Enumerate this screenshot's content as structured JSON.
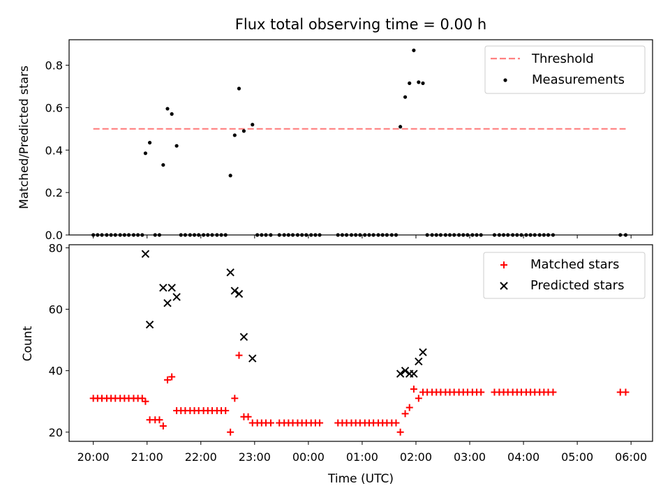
{
  "chart_data": {
    "title": "Flux total observing time = 0.00 h",
    "xlabel": "Time (UTC)",
    "x_tick_labels": [
      "20:00",
      "21:00",
      "22:00",
      "23:00",
      "00:00",
      "01:00",
      "02:00",
      "03:00",
      "04:00",
      "05:00",
      "06:00"
    ],
    "x_tick_hours": [
      0,
      1,
      2,
      3,
      4,
      5,
      6,
      7,
      8,
      9,
      10
    ],
    "x_range_hours": [
      -0.45,
      10.4
    ],
    "x_unit_note": "hours after 20:00 UTC",
    "colors": {
      "threshold": "#ff8080",
      "measurements": "#000000",
      "matched": "#ff0000",
      "predicted": "#000000"
    },
    "top": {
      "type": "scatter",
      "ylabel": "Matched/Predicted stars",
      "ylim": [
        0,
        0.92
      ],
      "yticks": [
        0.0,
        0.2,
        0.4,
        0.6,
        0.8
      ],
      "ytick_labels": [
        "0.0",
        "0.2",
        "0.4",
        "0.6",
        "0.8"
      ],
      "threshold": {
        "y": 0.5,
        "x": [
          0,
          9.9
        ]
      },
      "legend": {
        "position": "top-right",
        "threshold_label": "Threshold",
        "measurements_label": "Measurements"
      },
      "measurements": [
        [
          0,
          0
        ],
        [
          0.08,
          0
        ],
        [
          0.16,
          0
        ],
        [
          0.25,
          0
        ],
        [
          0.33,
          0
        ],
        [
          0.41,
          0
        ],
        [
          0.5,
          0
        ],
        [
          0.58,
          0
        ],
        [
          0.66,
          0
        ],
        [
          0.75,
          0
        ],
        [
          0.83,
          0
        ],
        [
          0.91,
          0
        ],
        [
          0.97,
          0.385
        ],
        [
          1.05,
          0.435
        ],
        [
          1.15,
          0
        ],
        [
          1.23,
          0
        ],
        [
          1.3,
          0.33
        ],
        [
          1.38,
          0.595
        ],
        [
          1.46,
          0.57
        ],
        [
          1.55,
          0.42
        ],
        [
          1.63,
          0
        ],
        [
          1.71,
          0
        ],
        [
          1.8,
          0
        ],
        [
          1.88,
          0
        ],
        [
          1.96,
          0
        ],
        [
          2.05,
          0
        ],
        [
          2.13,
          0
        ],
        [
          2.21,
          0
        ],
        [
          2.3,
          0
        ],
        [
          2.38,
          0
        ],
        [
          2.46,
          0
        ],
        [
          2.55,
          0.28
        ],
        [
          2.63,
          0.47
        ],
        [
          2.71,
          0.69
        ],
        [
          2.8,
          0.49
        ],
        [
          2.96,
          0.52
        ],
        [
          3.05,
          0
        ],
        [
          3.13,
          0
        ],
        [
          3.21,
          0
        ],
        [
          3.3,
          0
        ],
        [
          3.46,
          0
        ],
        [
          3.55,
          0
        ],
        [
          3.63,
          0
        ],
        [
          3.71,
          0
        ],
        [
          3.8,
          0
        ],
        [
          3.88,
          0
        ],
        [
          3.96,
          0
        ],
        [
          4.05,
          0
        ],
        [
          4.13,
          0
        ],
        [
          4.21,
          0
        ],
        [
          4.55,
          0
        ],
        [
          4.63,
          0
        ],
        [
          4.71,
          0
        ],
        [
          4.8,
          0
        ],
        [
          4.88,
          0
        ],
        [
          4.96,
          0
        ],
        [
          5.05,
          0
        ],
        [
          5.13,
          0
        ],
        [
          5.21,
          0
        ],
        [
          5.3,
          0
        ],
        [
          5.38,
          0
        ],
        [
          5.46,
          0
        ],
        [
          5.55,
          0
        ],
        [
          5.63,
          0
        ],
        [
          5.71,
          0.51
        ],
        [
          5.8,
          0.65
        ],
        [
          5.88,
          0.715
        ],
        [
          5.96,
          0.87
        ],
        [
          6.05,
          0.72
        ],
        [
          6.13,
          0.715
        ],
        [
          6.21,
          0
        ],
        [
          6.3,
          0
        ],
        [
          6.38,
          0
        ],
        [
          6.46,
          0
        ],
        [
          6.55,
          0
        ],
        [
          6.63,
          0
        ],
        [
          6.71,
          0
        ],
        [
          6.8,
          0
        ],
        [
          6.88,
          0
        ],
        [
          6.96,
          0
        ],
        [
          7.05,
          0
        ],
        [
          7.13,
          0
        ],
        [
          7.21,
          0
        ],
        [
          7.46,
          0
        ],
        [
          7.55,
          0
        ],
        [
          7.63,
          0
        ],
        [
          7.71,
          0
        ],
        [
          7.8,
          0
        ],
        [
          7.88,
          0
        ],
        [
          7.96,
          0
        ],
        [
          8.05,
          0
        ],
        [
          8.13,
          0
        ],
        [
          8.21,
          0
        ],
        [
          8.3,
          0
        ],
        [
          8.38,
          0
        ],
        [
          8.46,
          0
        ],
        [
          8.55,
          0
        ],
        [
          9.8,
          0
        ],
        [
          9.9,
          0
        ]
      ]
    },
    "bottom": {
      "type": "scatter",
      "ylabel": "Count",
      "ylim": [
        17,
        81
      ],
      "yticks": [
        20,
        40,
        60,
        80
      ],
      "ytick_labels": [
        "20",
        "40",
        "60",
        "80"
      ],
      "legend": {
        "position": "top-right",
        "matched_label": "Matched stars",
        "predicted_label": "Predicted stars"
      },
      "matched": [
        [
          0,
          31
        ],
        [
          0.08,
          31
        ],
        [
          0.16,
          31
        ],
        [
          0.25,
          31
        ],
        [
          0.33,
          31
        ],
        [
          0.41,
          31
        ],
        [
          0.5,
          31
        ],
        [
          0.58,
          31
        ],
        [
          0.66,
          31
        ],
        [
          0.75,
          31
        ],
        [
          0.83,
          31
        ],
        [
          0.91,
          31
        ],
        [
          0.97,
          30
        ],
        [
          1.05,
          24
        ],
        [
          1.15,
          24
        ],
        [
          1.23,
          24
        ],
        [
          1.3,
          22
        ],
        [
          1.38,
          37
        ],
        [
          1.46,
          38
        ],
        [
          1.55,
          27
        ],
        [
          1.63,
          27
        ],
        [
          1.71,
          27
        ],
        [
          1.8,
          27
        ],
        [
          1.88,
          27
        ],
        [
          1.96,
          27
        ],
        [
          2.05,
          27
        ],
        [
          2.13,
          27
        ],
        [
          2.21,
          27
        ],
        [
          2.3,
          27
        ],
        [
          2.38,
          27
        ],
        [
          2.46,
          27
        ],
        [
          2.55,
          20
        ],
        [
          2.63,
          31
        ],
        [
          2.71,
          45
        ],
        [
          2.8,
          25
        ],
        [
          2.88,
          25
        ],
        [
          2.96,
          23
        ],
        [
          3.05,
          23
        ],
        [
          3.13,
          23
        ],
        [
          3.21,
          23
        ],
        [
          3.3,
          23
        ],
        [
          3.46,
          23
        ],
        [
          3.55,
          23
        ],
        [
          3.63,
          23
        ],
        [
          3.71,
          23
        ],
        [
          3.8,
          23
        ],
        [
          3.88,
          23
        ],
        [
          3.96,
          23
        ],
        [
          4.05,
          23
        ],
        [
          4.13,
          23
        ],
        [
          4.21,
          23
        ],
        [
          4.55,
          23
        ],
        [
          4.63,
          23
        ],
        [
          4.71,
          23
        ],
        [
          4.8,
          23
        ],
        [
          4.88,
          23
        ],
        [
          4.96,
          23
        ],
        [
          5.05,
          23
        ],
        [
          5.13,
          23
        ],
        [
          5.21,
          23
        ],
        [
          5.3,
          23
        ],
        [
          5.38,
          23
        ],
        [
          5.46,
          23
        ],
        [
          5.55,
          23
        ],
        [
          5.63,
          23
        ],
        [
          5.71,
          20
        ],
        [
          5.8,
          26
        ],
        [
          5.88,
          28
        ],
        [
          5.96,
          34
        ],
        [
          6.05,
          31
        ],
        [
          6.13,
          33
        ],
        [
          6.21,
          33
        ],
        [
          6.3,
          33
        ],
        [
          6.38,
          33
        ],
        [
          6.46,
          33
        ],
        [
          6.55,
          33
        ],
        [
          6.63,
          33
        ],
        [
          6.71,
          33
        ],
        [
          6.8,
          33
        ],
        [
          6.88,
          33
        ],
        [
          6.96,
          33
        ],
        [
          7.05,
          33
        ],
        [
          7.13,
          33
        ],
        [
          7.21,
          33
        ],
        [
          7.46,
          33
        ],
        [
          7.55,
          33
        ],
        [
          7.63,
          33
        ],
        [
          7.71,
          33
        ],
        [
          7.8,
          33
        ],
        [
          7.88,
          33
        ],
        [
          7.96,
          33
        ],
        [
          8.05,
          33
        ],
        [
          8.13,
          33
        ],
        [
          8.21,
          33
        ],
        [
          8.3,
          33
        ],
        [
          8.38,
          33
        ],
        [
          8.46,
          33
        ],
        [
          8.55,
          33
        ],
        [
          9.8,
          33
        ],
        [
          9.9,
          33
        ]
      ],
      "predicted": [
        [
          0.97,
          78
        ],
        [
          1.05,
          55
        ],
        [
          1.3,
          67
        ],
        [
          1.38,
          62
        ],
        [
          1.46,
          67
        ],
        [
          1.55,
          64
        ],
        [
          2.55,
          72
        ],
        [
          2.63,
          66
        ],
        [
          2.71,
          65
        ],
        [
          2.8,
          51
        ],
        [
          2.96,
          44
        ],
        [
          5.71,
          39
        ],
        [
          5.8,
          40
        ],
        [
          5.88,
          39
        ],
        [
          5.96,
          39
        ],
        [
          6.05,
          43
        ],
        [
          6.13,
          46
        ]
      ]
    }
  }
}
